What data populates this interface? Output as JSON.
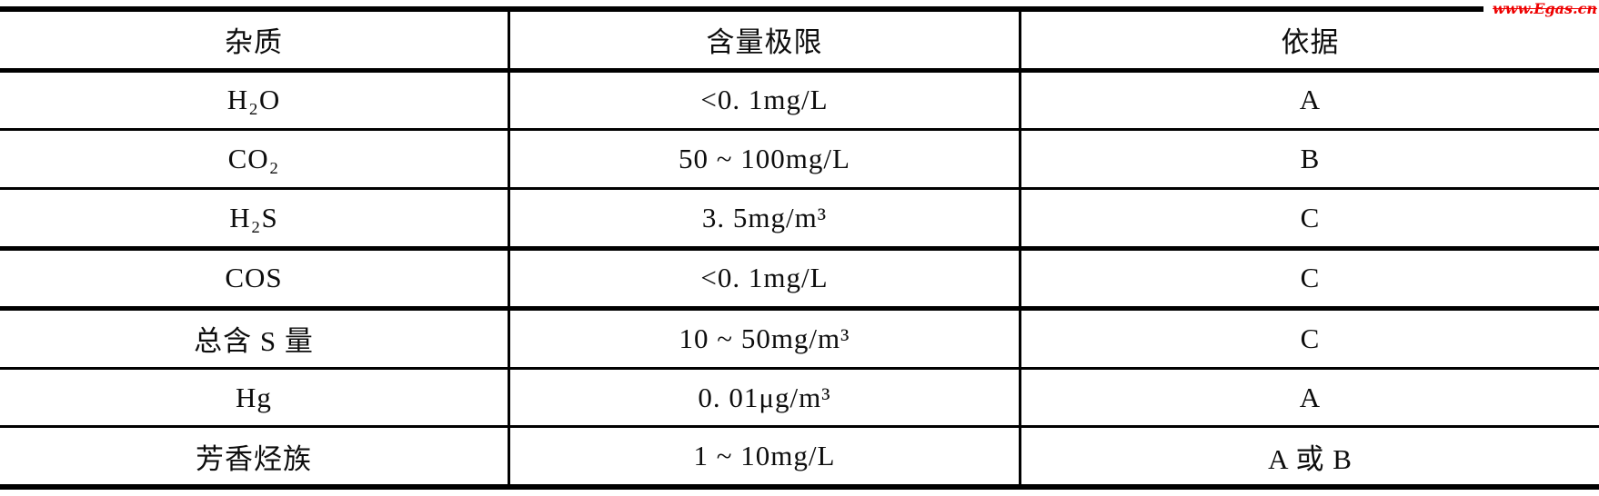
{
  "watermark": {
    "text": "www.Egas.cn",
    "color": "#ee0000"
  },
  "table": {
    "columns": [
      {
        "label": "杂质"
      },
      {
        "label": "含量极限"
      },
      {
        "label": "依据"
      }
    ],
    "rows": [
      {
        "impurity": "H₂O",
        "limit": "<0. 1mg/L",
        "basis": "A"
      },
      {
        "impurity": "CO₂",
        "limit": "50 ~ 100mg/L",
        "basis": "B"
      },
      {
        "impurity": "H₂S",
        "limit": "3. 5mg/m³",
        "basis": "C"
      },
      {
        "impurity": "COS",
        "limit": "<0. 1mg/L",
        "basis": "C"
      },
      {
        "impurity": "总含 S 量",
        "limit": "10 ~ 50mg/m³",
        "basis": "C"
      },
      {
        "impurity": "Hg",
        "limit": "0. 01μg/m³",
        "basis": "A"
      },
      {
        "impurity": "芳香烃族",
        "limit": "1 ~ 10mg/L",
        "basis": "A 或 B"
      }
    ]
  }
}
